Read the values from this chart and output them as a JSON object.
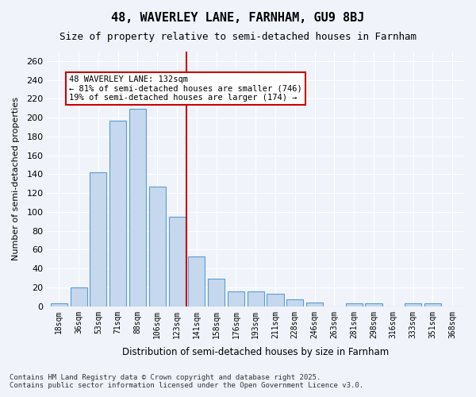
{
  "title1": "48, WAVERLEY LANE, FARNHAM, GU9 8BJ",
  "title2": "Size of property relative to semi-detached houses in Farnham",
  "xlabel": "Distribution of semi-detached houses by size in Farnham",
  "ylabel": "Number of semi-detached properties",
  "categories": [
    "18sqm",
    "36sqm",
    "53sqm",
    "71sqm",
    "88sqm",
    "106sqm",
    "123sqm",
    "141sqm",
    "158sqm",
    "176sqm",
    "193sqm",
    "211sqm",
    "228sqm",
    "246sqm",
    "263sqm",
    "281sqm",
    "298sqm",
    "316sqm",
    "333sqm",
    "351sqm",
    "368sqm"
  ],
  "values": [
    3,
    20,
    142,
    197,
    209,
    127,
    95,
    53,
    29,
    16,
    16,
    13,
    7,
    4,
    0,
    3,
    3,
    0,
    3,
    3,
    0
  ],
  "bar_color": "#c5d8ed",
  "bar_edge_color": "#5b9bd5",
  "property_size": 132,
  "property_label": "48 WAVERLEY LANE: 132sqm",
  "pct_smaller": 81,
  "pct_smaller_count": 746,
  "pct_larger": 19,
  "pct_larger_count": 174,
  "vline_x_index": 6.5,
  "vline_color": "#cc0000",
  "annotation_box_color": "#cc0000",
  "background_color": "#f0f4fa",
  "grid_color": "#ffffff",
  "footer1": "Contains HM Land Registry data © Crown copyright and database right 2025.",
  "footer2": "Contains public sector information licensed under the Open Government Licence v3.0.",
  "ylim": [
    0,
    270
  ],
  "yticks": [
    0,
    20,
    40,
    60,
    80,
    100,
    120,
    140,
    160,
    180,
    200,
    220,
    240,
    260
  ]
}
